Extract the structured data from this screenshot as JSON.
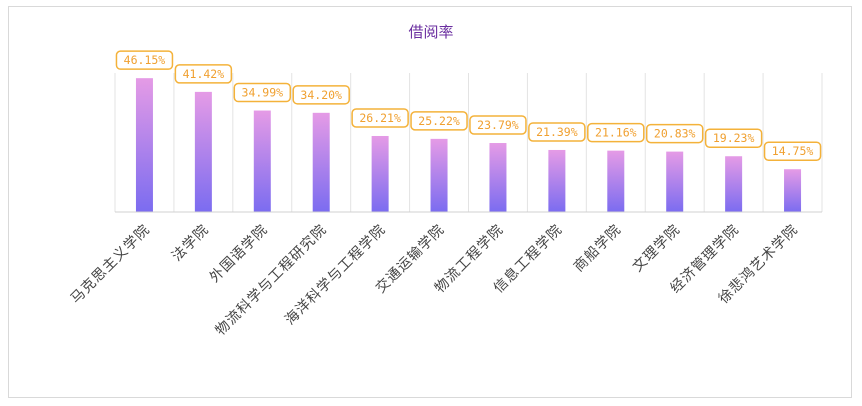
{
  "chart_data": {
    "type": "bar",
    "title": "借阅率",
    "categories": [
      "马克思主义学院",
      "法学院",
      "外国语学院",
      "物流科学与工程研究院",
      "海洋科学与工程学院",
      "交通运输学院",
      "物流工程学院",
      "信息工程学院",
      "商船学院",
      "文理学院",
      "经济管理学院",
      "徐悲鸿艺术学院"
    ],
    "values": [
      46.15,
      41.42,
      34.99,
      34.2,
      26.21,
      25.22,
      23.79,
      21.39,
      21.16,
      20.83,
      19.23,
      14.75
    ],
    "data_labels": [
      "46.15%",
      "41.42%",
      "34.99%",
      "34.20%",
      "26.21%",
      "25.22%",
      "23.79%",
      "21.39%",
      "21.16%",
      "20.83%",
      "19.23%",
      "14.75%"
    ],
    "xlabel": "",
    "ylabel": "",
    "ylim": [
      0,
      50
    ],
    "grid": "vertical category lines",
    "legend": "none",
    "colors": {
      "bar_top": "#e59be6",
      "bar_bottom": "#7b6cf0",
      "label_border": "#f4b23a",
      "label_text": "#f0a030",
      "title": "#6b2fa0",
      "axis": "#d0d0d0",
      "category_text": "#444444"
    }
  }
}
